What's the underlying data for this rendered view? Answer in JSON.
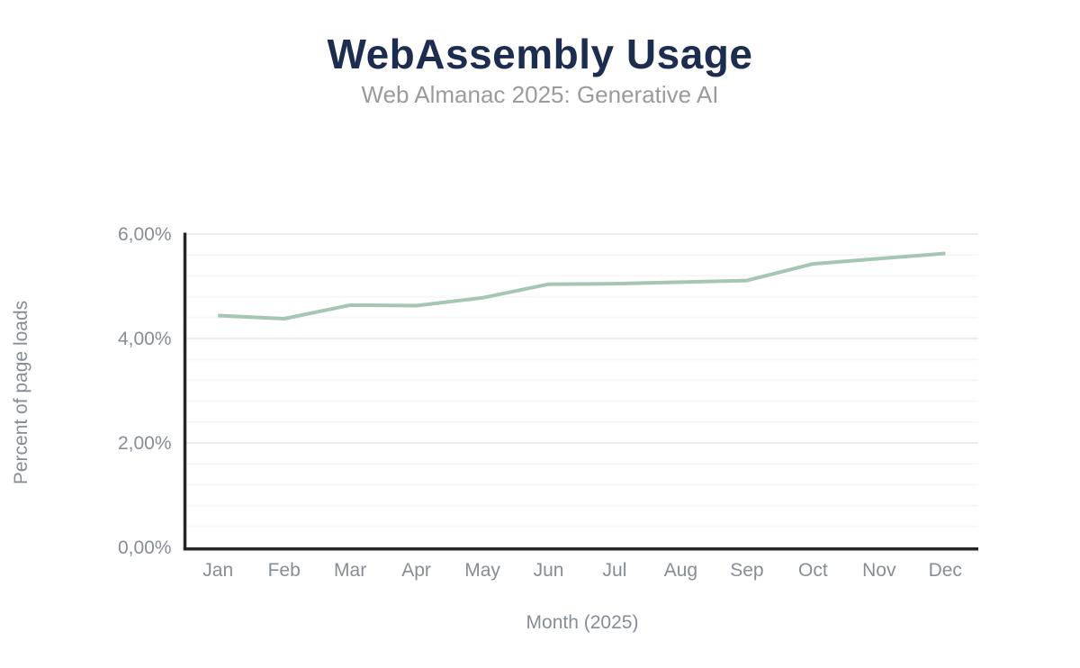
{
  "title": "WebAssembly Usage",
  "subtitle": "Web Almanac 2025: Generative AI",
  "colors": {
    "title": "#1d2d4f",
    "subtitle": "#9b9b9b",
    "tick_label": "#878d95",
    "axis_line": "#262626",
    "major_grid": "#ededed",
    "minor_grid": "#f6f6f6",
    "series_line": "#a5c6b3",
    "background": "#ffffff"
  },
  "chart_data": {
    "type": "line",
    "title": "WebAssembly Usage",
    "subtitle": "Web Almanac 2025: Generative AI",
    "xlabel": "Month (2025)",
    "ylabel": "Percent of page loads",
    "categories": [
      "Jan",
      "Feb",
      "Mar",
      "Apr",
      "May",
      "Jun",
      "Jul",
      "Aug",
      "Sep",
      "Oct",
      "Nov",
      "Dec"
    ],
    "series": [
      {
        "name": "Percent of page loads",
        "values": [
          4.44,
          4.38,
          4.64,
          4.63,
          4.78,
          5.04,
          5.05,
          5.08,
          5.11,
          5.43,
          5.53,
          5.63
        ]
      }
    ],
    "ylim": [
      0,
      6
    ],
    "yticks": [
      0,
      2,
      4,
      6
    ],
    "ytick_labels": [
      "0,00%",
      "2,00%",
      "4,00%",
      "6,00%"
    ],
    "minor_grid_interval": 0.4,
    "grid": true,
    "legend": false,
    "markers": false,
    "line_color": "#a5c6b3"
  }
}
